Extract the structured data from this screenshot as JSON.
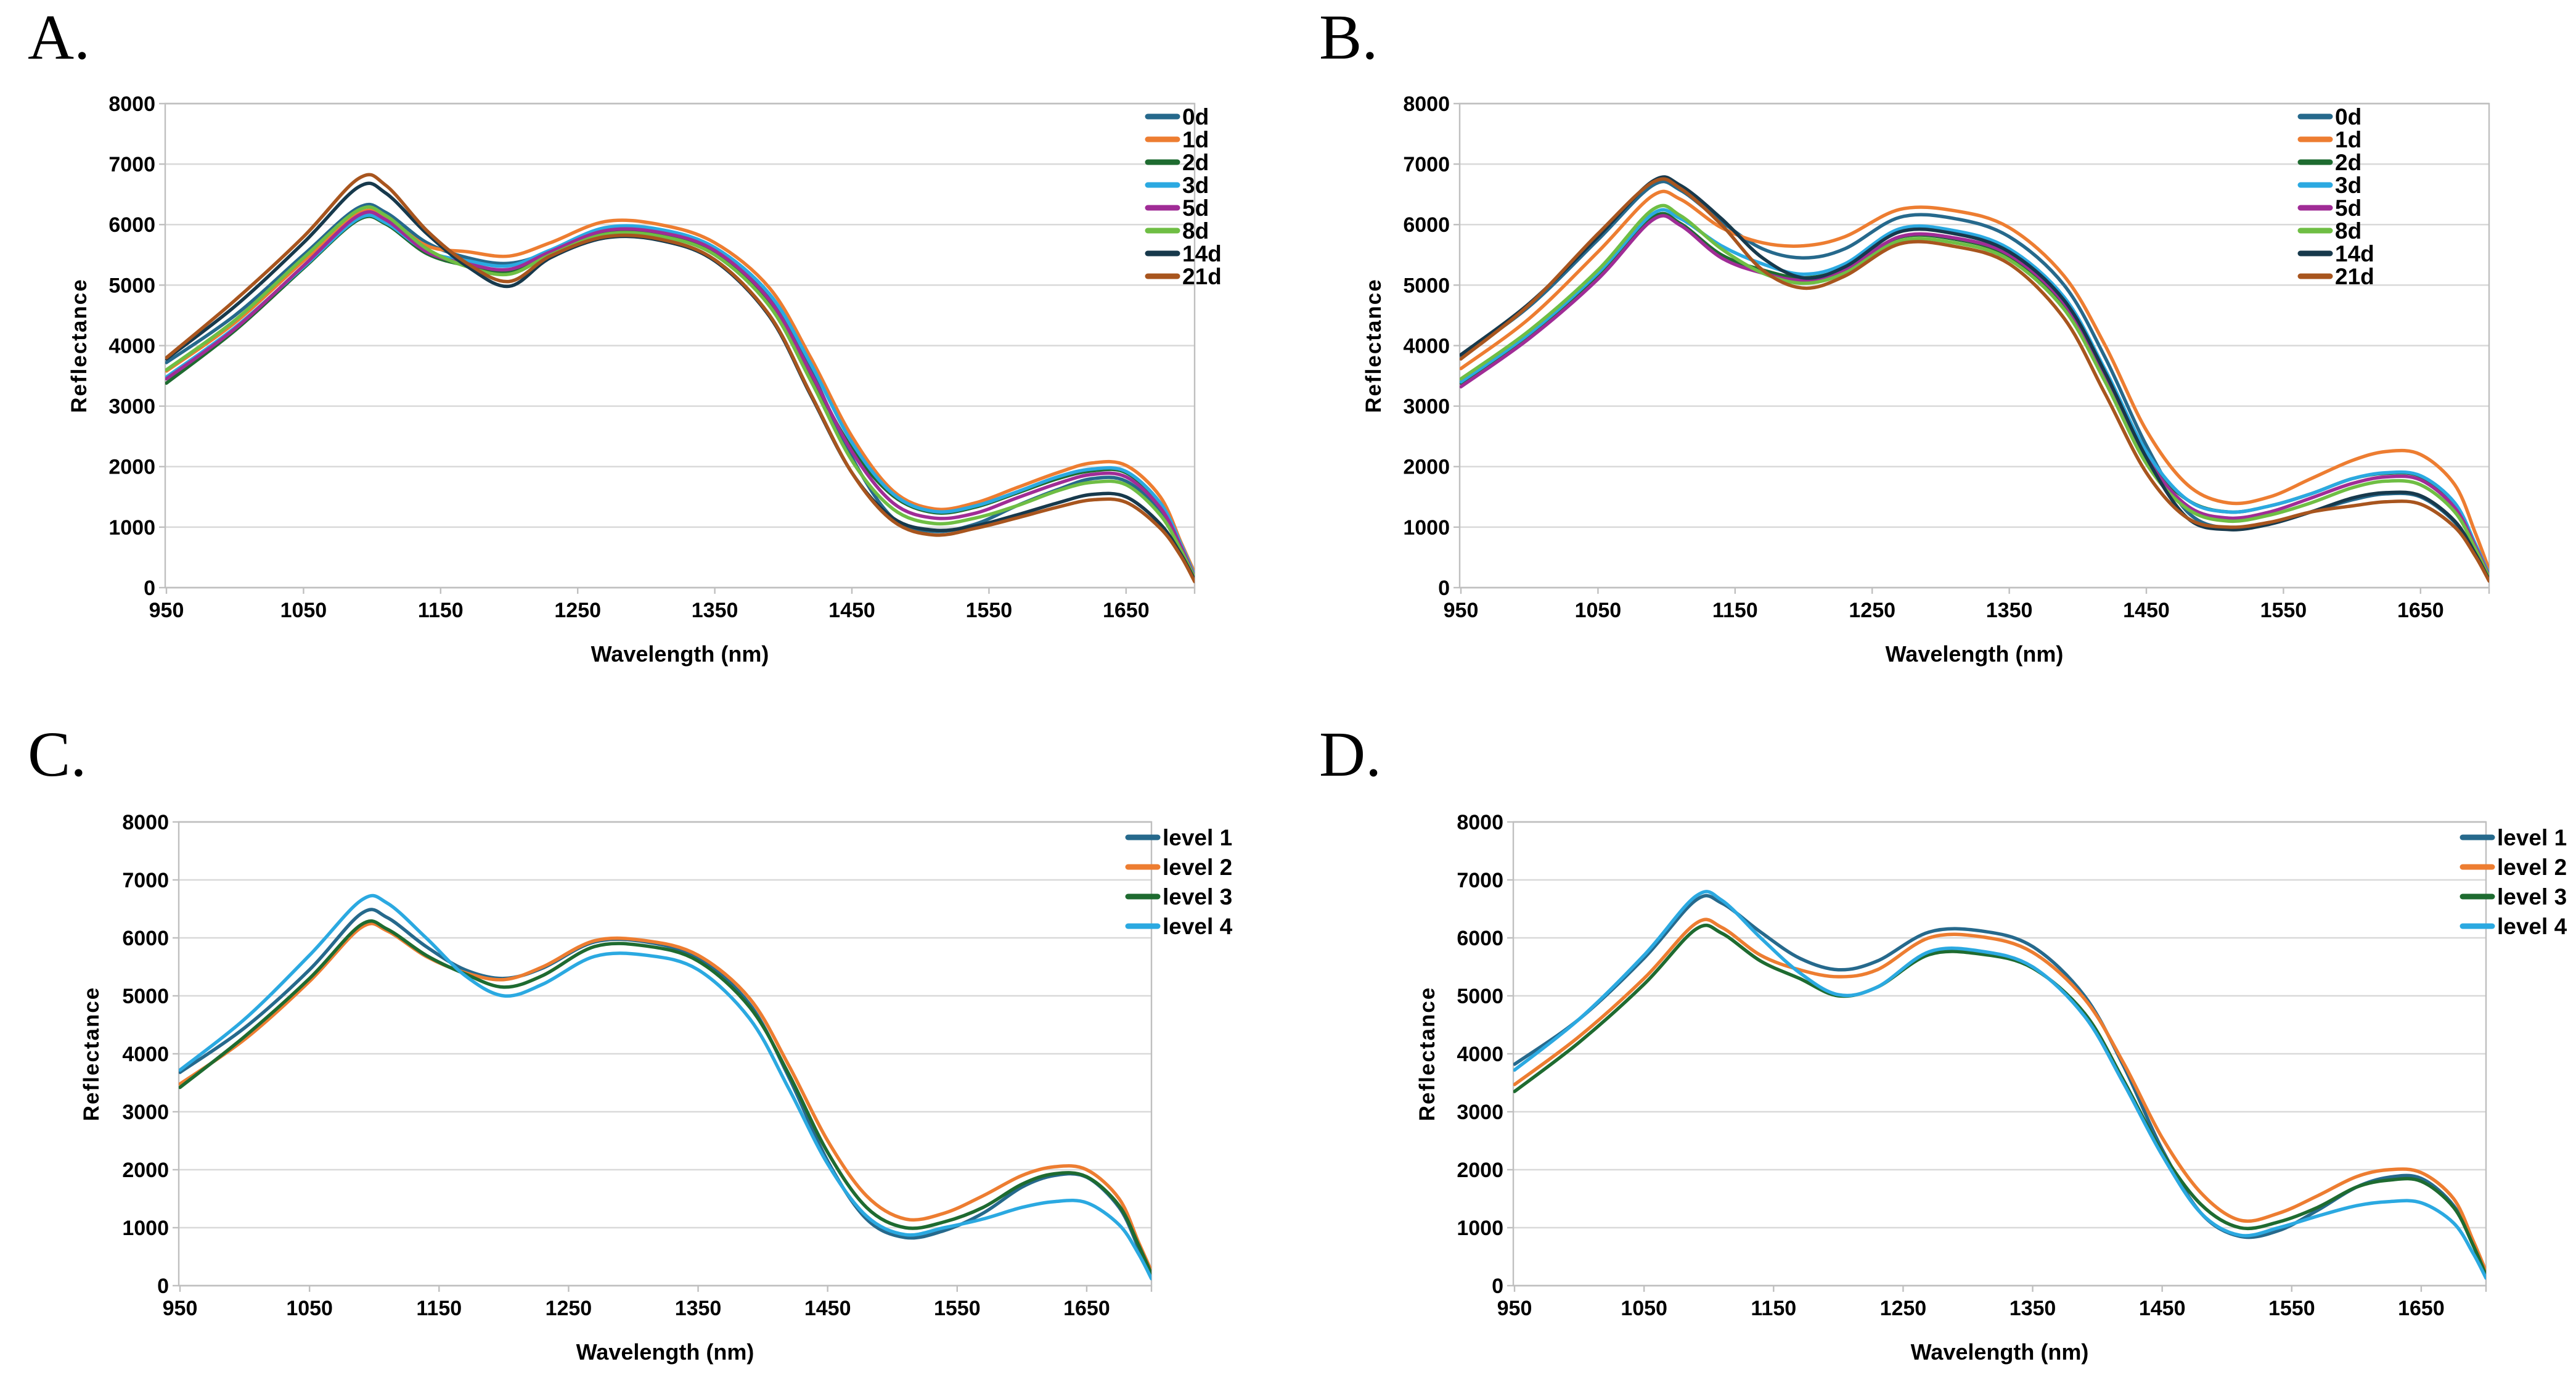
{
  "background": "#ffffff",
  "colors": {
    "gridline": "#d9d9d9",
    "plot_border": "#bfbfbf",
    "tick_mark": "#bfbfbf",
    "text": "#000000"
  },
  "chart_data": [
    {
      "id": "A",
      "panel_label": "A.",
      "type": "line",
      "legend_position": "inside-top-right",
      "grid": "horizontal",
      "x_axis": {
        "title": "Wavelength (nm)",
        "min": 950,
        "max": 1700,
        "ticks": [
          950,
          1050,
          1150,
          1250,
          1350,
          1450,
          1550,
          1650
        ],
        "tick_labels": [
          "950",
          "1050",
          "1150",
          "1250",
          "1350",
          "1450",
          "1550",
          "1650"
        ]
      },
      "y_axis": {
        "title": "Reflectance",
        "min": 0,
        "max": 8000,
        "step": 1000,
        "tick_labels": [
          "0",
          "1000",
          "2000",
          "3000",
          "4000",
          "5000",
          "6000",
          "7000",
          "8000"
        ]
      },
      "wavelengths": [
        950,
        1000,
        1050,
        1090,
        1110,
        1140,
        1170,
        1200,
        1230,
        1270,
        1310,
        1350,
        1390,
        1420,
        1450,
        1480,
        1510,
        1540,
        1570,
        1600,
        1625,
        1650,
        1675,
        1690,
        1700
      ],
      "series": [
        {
          "name": "0d",
          "color": "#26698C",
          "values": [
            3720,
            4500,
            5500,
            6280,
            6200,
            5700,
            5450,
            5360,
            5550,
            5920,
            5880,
            5600,
            4800,
            3600,
            2150,
            1150,
            930,
            1050,
            1350,
            1620,
            1800,
            1760,
            1250,
            600,
            150
          ]
        },
        {
          "name": "1d",
          "color": "#ED7D31",
          "values": [
            3580,
            4380,
            5400,
            6180,
            6120,
            5650,
            5550,
            5480,
            5700,
            6050,
            6000,
            5700,
            4950,
            3800,
            2500,
            1600,
            1300,
            1400,
            1650,
            1900,
            2060,
            2020,
            1500,
            750,
            250
          ]
        },
        {
          "name": "2d",
          "color": "#1E6B30",
          "values": [
            3380,
            4250,
            5280,
            6080,
            6010,
            5520,
            5320,
            5220,
            5520,
            5870,
            5840,
            5540,
            4700,
            3500,
            2300,
            1520,
            1240,
            1330,
            1560,
            1800,
            1930,
            1900,
            1380,
            700,
            180
          ]
        },
        {
          "name": "3d",
          "color": "#2BA9E1",
          "values": [
            3480,
            4300,
            5300,
            6100,
            6030,
            5560,
            5400,
            5320,
            5580,
            5950,
            5920,
            5620,
            4850,
            3700,
            2400,
            1550,
            1260,
            1350,
            1580,
            1830,
            1960,
            1920,
            1400,
            720,
            200
          ]
        },
        {
          "name": "5d",
          "color": "#A02C96",
          "values": [
            3450,
            4280,
            5320,
            6150,
            6080,
            5550,
            5350,
            5260,
            5550,
            5900,
            5870,
            5570,
            4750,
            3550,
            2250,
            1400,
            1150,
            1230,
            1480,
            1720,
            1870,
            1830,
            1320,
            680,
            170
          ]
        },
        {
          "name": "8d",
          "color": "#6FBE44",
          "values": [
            3600,
            4420,
            5450,
            6240,
            6150,
            5600,
            5300,
            5180,
            5500,
            5840,
            5810,
            5500,
            4650,
            3420,
            2100,
            1300,
            1060,
            1150,
            1350,
            1600,
            1740,
            1700,
            1200,
            620,
            160
          ]
        },
        {
          "name": "14d",
          "color": "#17394C",
          "values": [
            3780,
            4650,
            5700,
            6620,
            6520,
            5850,
            5300,
            4980,
            5450,
            5780,
            5740,
            5400,
            4480,
            3180,
            1900,
            1150,
            950,
            1020,
            1200,
            1400,
            1540,
            1500,
            1050,
            550,
            130
          ]
        },
        {
          "name": "21d",
          "color": "#A8551E",
          "values": [
            3800,
            4750,
            5800,
            6760,
            6650,
            5900,
            5350,
            5060,
            5480,
            5800,
            5760,
            5420,
            4500,
            3200,
            1900,
            1100,
            870,
            980,
            1150,
            1330,
            1450,
            1410,
            980,
            520,
            100
          ]
        }
      ]
    },
    {
      "id": "B",
      "panel_label": "B.",
      "type": "line",
      "legend_position": "inside-top-right",
      "grid": "horizontal",
      "x_axis": {
        "title": "Wavelength (nm)",
        "min": 950,
        "max": 1700,
        "ticks": [
          950,
          1050,
          1150,
          1250,
          1350,
          1450,
          1550,
          1650
        ],
        "tick_labels": [
          "950",
          "1050",
          "1150",
          "1250",
          "1350",
          "1450",
          "1550",
          "1650"
        ]
      },
      "y_axis": {
        "title": "Reflectance",
        "min": 0,
        "max": 8000,
        "step": 1000,
        "tick_labels": [
          "0",
          "1000",
          "2000",
          "3000",
          "4000",
          "5000",
          "6000",
          "7000",
          "8000"
        ]
      },
      "wavelengths": [
        950,
        1000,
        1050,
        1090,
        1110,
        1140,
        1170,
        1200,
        1230,
        1270,
        1310,
        1350,
        1390,
        1420,
        1450,
        1480,
        1510,
        1540,
        1570,
        1600,
        1625,
        1650,
        1675,
        1690,
        1700
      ],
      "series": [
        {
          "name": "0d",
          "color": "#26698C",
          "values": [
            3830,
            4650,
            5750,
            6650,
            6570,
            6050,
            5600,
            5450,
            5600,
            6120,
            6100,
            5800,
            5000,
            3800,
            2350,
            1250,
            980,
            1050,
            1250,
            1450,
            1550,
            1500,
            1080,
            550,
            150
          ]
        },
        {
          "name": "1d",
          "color": "#ED7D31",
          "values": [
            3620,
            4450,
            5550,
            6480,
            6420,
            5950,
            5700,
            5650,
            5800,
            6250,
            6230,
            5950,
            5150,
            4000,
            2600,
            1700,
            1400,
            1500,
            1800,
            2100,
            2250,
            2200,
            1700,
            900,
            300
          ]
        },
        {
          "name": "2d",
          "color": "#1E6B30",
          "values": [
            3380,
            4180,
            5150,
            6120,
            6020,
            5500,
            5250,
            5120,
            5280,
            5790,
            5760,
            5480,
            4680,
            3480,
            2150,
            1450,
            1250,
            1350,
            1550,
            1800,
            1890,
            1840,
            1380,
            700,
            200
          ]
        },
        {
          "name": "3d",
          "color": "#2BA9E1",
          "values": [
            3400,
            4200,
            5200,
            6180,
            6100,
            5650,
            5350,
            5180,
            5350,
            5930,
            5900,
            5600,
            4800,
            3600,
            2250,
            1450,
            1250,
            1350,
            1550,
            1800,
            1900,
            1850,
            1400,
            720,
            220
          ]
        },
        {
          "name": "5d",
          "color": "#A02C96",
          "values": [
            3320,
            4120,
            5100,
            6080,
            5990,
            5450,
            5200,
            5080,
            5250,
            5800,
            5780,
            5500,
            4700,
            3500,
            2150,
            1350,
            1150,
            1250,
            1480,
            1720,
            1830,
            1780,
            1320,
            680,
            190
          ]
        },
        {
          "name": "8d",
          "color": "#6FBE44",
          "values": [
            3450,
            4250,
            5250,
            6250,
            6150,
            5600,
            5200,
            5030,
            5200,
            5730,
            5700,
            5420,
            4600,
            3400,
            2050,
            1300,
            1100,
            1200,
            1400,
            1650,
            1760,
            1700,
            1250,
            640,
            170
          ]
        },
        {
          "name": "14d",
          "color": "#17394C",
          "values": [
            3850,
            4700,
            5800,
            6720,
            6650,
            6100,
            5450,
            5120,
            5300,
            5880,
            5850,
            5550,
            4750,
            3550,
            2150,
            1150,
            960,
            1050,
            1250,
            1480,
            1570,
            1520,
            1100,
            560,
            130
          ]
        },
        {
          "name": "21d",
          "color": "#A8551E",
          "values": [
            3780,
            4680,
            5850,
            6700,
            6600,
            6000,
            5250,
            4950,
            5150,
            5680,
            5640,
            5350,
            4450,
            3200,
            1900,
            1150,
            1000,
            1080,
            1250,
            1350,
            1420,
            1380,
            1000,
            520,
            110
          ]
        }
      ]
    },
    {
      "id": "C",
      "panel_label": "C.",
      "type": "line",
      "legend_position": "inside-top-right",
      "grid": "horizontal",
      "x_axis": {
        "title": "Wavelength (nm)",
        "min": 950,
        "max": 1700,
        "ticks": [
          950,
          1050,
          1150,
          1250,
          1350,
          1450,
          1550,
          1650
        ],
        "tick_labels": [
          "950",
          "1050",
          "1150",
          "1250",
          "1350",
          "1450",
          "1550",
          "1650"
        ]
      },
      "y_axis": {
        "title": "Reflectance",
        "min": 0,
        "max": 8000,
        "step": 1000,
        "tick_labels": [
          "0",
          "1000",
          "2000",
          "3000",
          "4000",
          "5000",
          "6000",
          "7000",
          "8000"
        ]
      },
      "wavelengths": [
        950,
        1000,
        1050,
        1090,
        1110,
        1140,
        1170,
        1200,
        1230,
        1270,
        1310,
        1350,
        1390,
        1420,
        1450,
        1480,
        1510,
        1540,
        1570,
        1600,
        1625,
        1650,
        1675,
        1690,
        1700
      ],
      "series": [
        {
          "name": "level 1",
          "color": "#26698C",
          "values": [
            3680,
            4450,
            5450,
            6420,
            6350,
            5850,
            5450,
            5300,
            5480,
            5930,
            5930,
            5650,
            4850,
            3600,
            2150,
            1150,
            830,
            950,
            1250,
            1700,
            1900,
            1870,
            1350,
            650,
            150
          ]
        },
        {
          "name": "level 2",
          "color": "#ED7D31",
          "values": [
            3480,
            4250,
            5250,
            6180,
            6120,
            5680,
            5400,
            5280,
            5500,
            5950,
            5950,
            5700,
            4950,
            3800,
            2500,
            1550,
            1150,
            1250,
            1550,
            1900,
            2050,
            2000,
            1500,
            750,
            250
          ]
        },
        {
          "name": "level 3",
          "color": "#1E6B30",
          "values": [
            3420,
            4300,
            5300,
            6230,
            6150,
            5700,
            5380,
            5150,
            5350,
            5850,
            5860,
            5600,
            4800,
            3650,
            2300,
            1350,
            1000,
            1100,
            1350,
            1750,
            1930,
            1880,
            1380,
            700,
            200
          ]
        },
        {
          "name": "level 4",
          "color": "#2BA9E1",
          "values": [
            3720,
            4600,
            5700,
            6650,
            6600,
            6000,
            5350,
            5000,
            5200,
            5680,
            5700,
            5450,
            4600,
            3400,
            2100,
            1200,
            880,
            1000,
            1150,
            1350,
            1450,
            1430,
            1050,
            550,
            120
          ]
        }
      ]
    },
    {
      "id": "D",
      "panel_label": "D.",
      "type": "line",
      "legend_position": "inside-top-right",
      "grid": "horizontal",
      "x_axis": {
        "title": "Wavelength (nm)",
        "min": 950,
        "max": 1700,
        "ticks": [
          950,
          1050,
          1150,
          1250,
          1350,
          1450,
          1550,
          1650
        ],
        "tick_labels": [
          "950",
          "1050",
          "1150",
          "1250",
          "1350",
          "1450",
          "1550",
          "1650"
        ]
      },
      "y_axis": {
        "title": "Reflectance",
        "min": 0,
        "max": 8000,
        "step": 1000,
        "tick_labels": [
          "0",
          "1000",
          "2000",
          "3000",
          "4000",
          "5000",
          "6000",
          "7000",
          "8000"
        ]
      },
      "wavelengths": [
        950,
        1000,
        1050,
        1090,
        1110,
        1140,
        1170,
        1200,
        1230,
        1270,
        1310,
        1350,
        1390,
        1420,
        1450,
        1480,
        1510,
        1540,
        1570,
        1600,
        1625,
        1650,
        1675,
        1690,
        1700
      ],
      "series": [
        {
          "name": "level 1",
          "color": "#26698C",
          "values": [
            3820,
            4600,
            5650,
            6650,
            6600,
            6100,
            5650,
            5450,
            5600,
            6100,
            6120,
            5850,
            5000,
            3800,
            2350,
            1250,
            850,
            950,
            1300,
            1700,
            1870,
            1850,
            1380,
            700,
            160
          ]
        },
        {
          "name": "level 2",
          "color": "#ED7D31",
          "values": [
            3470,
            4300,
            5300,
            6250,
            6180,
            5700,
            5450,
            5330,
            5450,
            6000,
            6020,
            5750,
            4950,
            3850,
            2550,
            1600,
            1130,
            1250,
            1550,
            1880,
            2000,
            1950,
            1500,
            780,
            250
          ]
        },
        {
          "name": "level 3",
          "color": "#1E6B30",
          "values": [
            3350,
            4200,
            5200,
            6150,
            6080,
            5600,
            5300,
            5000,
            5150,
            5710,
            5720,
            5480,
            4700,
            3550,
            2300,
            1400,
            1000,
            1100,
            1350,
            1700,
            1820,
            1800,
            1350,
            700,
            180
          ]
        },
        {
          "name": "level 4",
          "color": "#2BA9E1",
          "values": [
            3720,
            4600,
            5700,
            6720,
            6650,
            6000,
            5400,
            5020,
            5150,
            5760,
            5770,
            5500,
            4650,
            3500,
            2250,
            1250,
            870,
            1000,
            1200,
            1380,
            1450,
            1430,
            1080,
            560,
            130
          ]
        }
      ]
    }
  ]
}
